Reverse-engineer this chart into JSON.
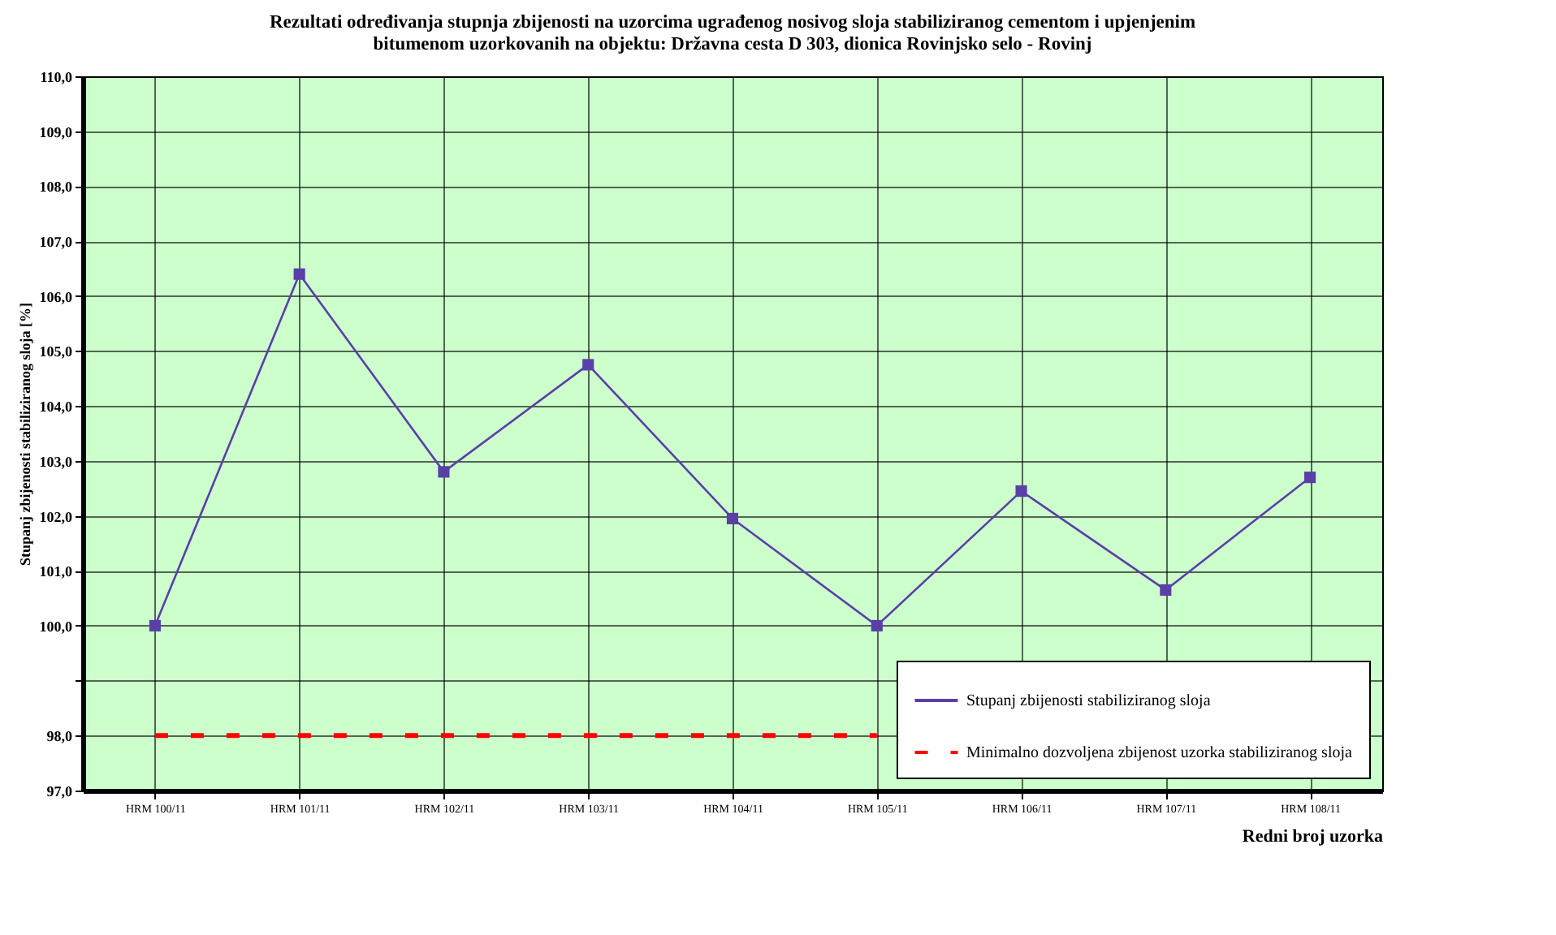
{
  "chart_data": {
    "type": "line",
    "title": [
      "Rezultati određivanja stupnja zbijenosti na uzorcima ugrađenog nosivog sloja stabiliziranog cementom i upjenjenim",
      "bitumenom uzorkovanih na objektu: Državna cesta D 303, dionica Rovinjsko selo - Rovinj"
    ],
    "xlabel": "Redni broj uzorka",
    "ylabel": "Stupanj zbijenosti stabiliziranog sloja [%]",
    "categories": [
      "HRM 100/11",
      "HRM 101/11",
      "HRM 102/11",
      "HRM 103/11",
      "HRM 104/11",
      "HRM 105/11",
      "HRM 106/11",
      "HRM 107/11",
      "HRM 108/11"
    ],
    "series": [
      {
        "name": "Stupanj zbijenosti stabiliziranog sloja",
        "color": "#5b3fa8",
        "marker": "square",
        "line_style": "solid",
        "values": [
          100.0,
          106.4,
          102.8,
          104.75,
          101.95,
          100.0,
          102.45,
          100.65,
          102.7
        ]
      },
      {
        "name": "Minimalno dozvoljena zbijenost uzorka stabiliziranog sloja",
        "color": "#ff0000",
        "marker": "none",
        "line_style": "dashed",
        "values": [
          98,
          98,
          98,
          98,
          98,
          98,
          null,
          null,
          null
        ]
      }
    ],
    "ylim": [
      97,
      110
    ],
    "yticks": [
      {
        "value": 97,
        "label": "97,0"
      },
      {
        "value": 98,
        "label": "98,0"
      },
      {
        "value": 99,
        "label": null
      },
      {
        "value": 100,
        "label": "100,0"
      },
      {
        "value": 101,
        "label": "101,0"
      },
      {
        "value": 102,
        "label": "102,0"
      },
      {
        "value": 103,
        "label": "103,0"
      },
      {
        "value": 104,
        "label": "104,0"
      },
      {
        "value": 105,
        "label": "105,0"
      },
      {
        "value": 106,
        "label": "106,0"
      },
      {
        "value": 107,
        "label": "107,0"
      },
      {
        "value": 108,
        "label": "108,0"
      },
      {
        "value": 109,
        "label": "109,0"
      },
      {
        "value": 110,
        "label": "110,0"
      }
    ],
    "grid": true,
    "legend": "bottom right"
  }
}
